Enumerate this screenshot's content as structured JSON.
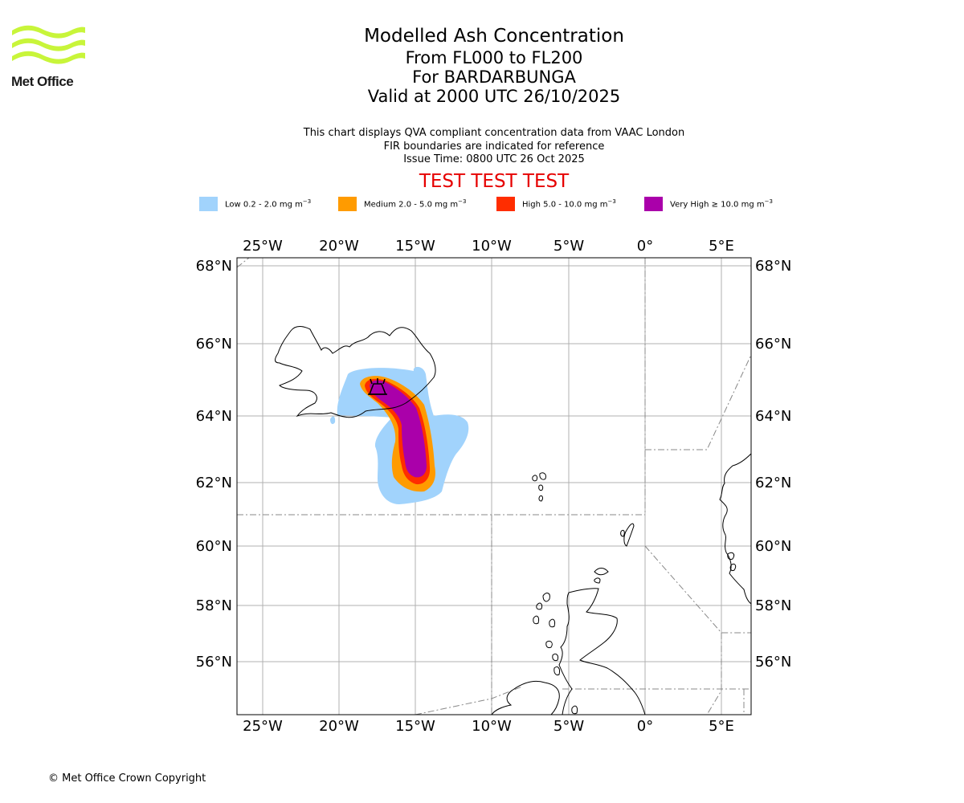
{
  "organisation": {
    "logo_text": "Met Office"
  },
  "titles": {
    "main": "Modelled Ash Concentration",
    "levels": "From FL000 to FL200",
    "volcano": "For BARDARBUNGA",
    "valid": "Valid at 2000 UTC 26/10/2025"
  },
  "description": {
    "line1": "This chart displays QVA compliant concentration data from VAAC London",
    "line2": "FIR boundaries are indicated for reference",
    "issue_time": "Issue Time: 0800 UTC 26 Oct 2025"
  },
  "test_banner": "TEST TEST TEST",
  "legend": [
    {
      "label": "Low 0.2 - 2.0 mg m",
      "unit_exp": "−3",
      "color": "#a1d3fc"
    },
    {
      "label": "Medium 2.0 - 5.0 mg m",
      "unit_exp": "−3",
      "color": "#ff9b00"
    },
    {
      "label": "High 5.0 - 10.0 mg m",
      "unit_exp": "−3",
      "color": "#ff2d00"
    },
    {
      "label": "Very High ≥ 10.0 mg m",
      "unit_exp": "−3",
      "color": "#aa00aa"
    }
  ],
  "map": {
    "lon_ticks": [
      "25°W",
      "20°W",
      "15°W",
      "10°W",
      "5°W",
      "0°",
      "5°E"
    ],
    "lat_ticks": [
      "68°N",
      "66°N",
      "64°N",
      "62°N",
      "60°N",
      "58°N",
      "56°N"
    ],
    "volcano_marker": "volcano-icon"
  },
  "copyright": "© Met Office Crown Copyright"
}
